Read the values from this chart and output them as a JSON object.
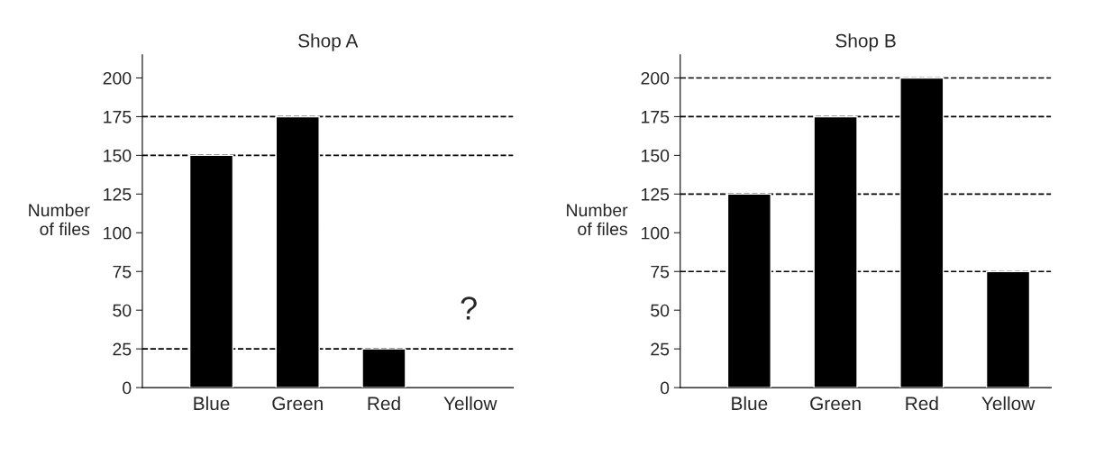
{
  "chart_data": [
    {
      "type": "bar",
      "title": "Shop A",
      "ylabel": "Number\nof files",
      "categories": [
        "Blue",
        "Green",
        "Red",
        "Yellow"
      ],
      "values": [
        150,
        175,
        25,
        null
      ],
      "color": "#000000",
      "ylim": [
        0,
        215
      ],
      "yticks": [
        0,
        25,
        50,
        75,
        100,
        125,
        150,
        175,
        200
      ],
      "grid": false,
      "ref_lines": [
        {
          "axis": "y",
          "value": 175
        },
        {
          "axis": "y",
          "value": 150
        },
        {
          "axis": "y",
          "value": 25
        }
      ],
      "annotations": [
        "?"
      ]
    },
    {
      "type": "bar",
      "title": "Shop B",
      "ylabel": "Number\nof files",
      "categories": [
        "Blue",
        "Green",
        "Red",
        "Yellow"
      ],
      "values": [
        125,
        175,
        200,
        75
      ],
      "color": "#000000",
      "ylim": [
        0,
        215
      ],
      "yticks": [
        0,
        25,
        50,
        75,
        100,
        125,
        150,
        175,
        200
      ],
      "grid": false,
      "ref_lines": [
        {
          "axis": "y",
          "value": 200
        },
        {
          "axis": "y",
          "value": 175
        },
        {
          "axis": "y",
          "value": 125
        },
        {
          "axis": "y",
          "value": 75
        }
      ]
    }
  ]
}
